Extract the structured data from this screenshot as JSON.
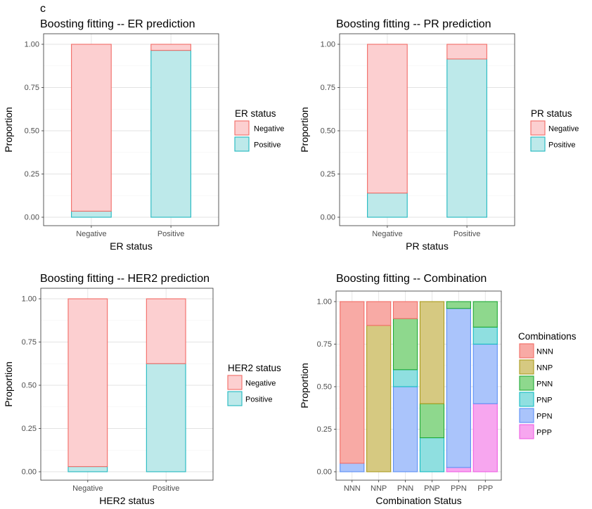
{
  "panel_label": "c",
  "colors": {
    "negative_fill": "#fccfd0",
    "negative_stroke": "#f26c66",
    "positive_fill": "#bde9ea",
    "positive_stroke": "#21b8bf",
    "NNN_fill": "#f8aaa5",
    "NNN_stroke": "#f26c66",
    "NNP_fill": "#d6c981",
    "NNP_stroke": "#aa9c1e",
    "PNN_fill": "#8ed88d",
    "PNN_stroke": "#1faa37",
    "PNP_fill": "#8fdfe0",
    "PNP_stroke": "#13bbc3",
    "PPN_fill": "#aac4fb",
    "PPN_stroke": "#5c8ff5",
    "PPP_fill": "#f7a6ef",
    "PPP_stroke": "#ef5fe3"
  },
  "chart_data": [
    {
      "type": "bar",
      "stacked": true,
      "title": "Boosting fitting -- ER prediction",
      "xlabel": "ER status",
      "ylabel": "Proportion",
      "categories": [
        "Negative",
        "Positive"
      ],
      "ylim": [
        0,
        1
      ],
      "yticks": [
        "0.00",
        "0.25",
        "0.50",
        "0.75",
        "1.00"
      ],
      "legend_title": "ER status",
      "legend_position": "right",
      "series": [
        {
          "name": "Positive",
          "values": [
            0.035,
            0.965
          ],
          "color_key": "positive"
        },
        {
          "name": "Negative",
          "values": [
            0.965,
            0.035
          ],
          "color_key": "negative"
        }
      ]
    },
    {
      "type": "bar",
      "stacked": true,
      "title": "Boosting fitting -- PR prediction",
      "xlabel": "PR status",
      "ylabel": "Proportion",
      "categories": [
        "Negative",
        "Positive"
      ],
      "ylim": [
        0,
        1
      ],
      "yticks": [
        "0.00",
        "0.25",
        "0.50",
        "0.75",
        "1.00"
      ],
      "legend_title": "PR status",
      "legend_position": "right",
      "series": [
        {
          "name": "Positive",
          "values": [
            0.14,
            0.915
          ],
          "color_key": "positive"
        },
        {
          "name": "Negative",
          "values": [
            0.86,
            0.085
          ],
          "color_key": "negative"
        }
      ]
    },
    {
      "type": "bar",
      "stacked": true,
      "title": "Boosting fitting -- HER2 prediction",
      "xlabel": "HER2 status",
      "ylabel": "Proportion",
      "categories": [
        "Negative",
        "Positive"
      ],
      "ylim": [
        0,
        1
      ],
      "yticks": [
        "0.00",
        "0.25",
        "0.50",
        "0.75",
        "1.00"
      ],
      "legend_title": "HER2 status",
      "legend_position": "right",
      "series": [
        {
          "name": "Positive",
          "values": [
            0.03,
            0.625
          ],
          "color_key": "positive"
        },
        {
          "name": "Negative",
          "values": [
            0.97,
            0.375
          ],
          "color_key": "negative"
        }
      ]
    },
    {
      "type": "bar",
      "stacked": true,
      "title": "Boosting fitting -- Combination",
      "xlabel": "Combination Status",
      "ylabel": "Proportion",
      "categories": [
        "NNN",
        "NNP",
        "PNN",
        "PNP",
        "PPN",
        "PPP"
      ],
      "ylim": [
        0,
        1
      ],
      "yticks": [
        "0.00",
        "0.25",
        "0.50",
        "0.75",
        "1.00"
      ],
      "legend_title": "Combinations",
      "legend_position": "right",
      "series": [
        {
          "name": "PPP",
          "values": [
            0,
            0,
            0,
            0,
            0,
            0.4
          ],
          "color_key": "PPP"
        },
        {
          "name": "PPN",
          "values": [
            0.05,
            0,
            0.5,
            0,
            0.935,
            0.35
          ],
          "color_key": "PPN"
        },
        {
          "name": "PNP",
          "values": [
            0,
            0,
            0.1,
            0.2,
            0,
            0.1
          ],
          "color_key": "PNP"
        },
        {
          "name": "PNN",
          "values": [
            0,
            0,
            0.3,
            0.2,
            0.04,
            0.15
          ],
          "color_key": "PNN"
        },
        {
          "name": "NNP",
          "values": [
            0,
            0.86,
            0,
            0.6,
            0,
            0
          ],
          "color_key": "NNP"
        },
        {
          "name": "NNN",
          "values": [
            0.95,
            0.14,
            0.1,
            0,
            0,
            0
          ],
          "color_key": "NNN"
        }
      ],
      "base_series": {
        "name": "PPP",
        "values": [
          0,
          0,
          0,
          0,
          0.025,
          0
        ]
      }
    }
  ]
}
